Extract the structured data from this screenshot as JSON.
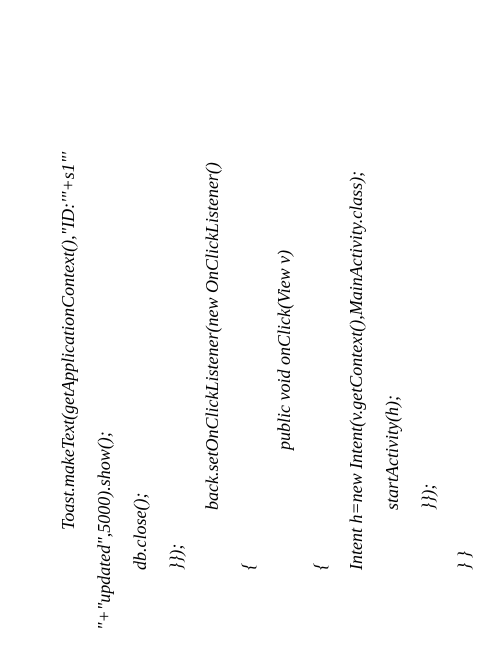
{
  "code": {
    "font_family": "Times New Roman",
    "font_style": "italic",
    "font_size_pt": 14,
    "text_color": "#000000",
    "background_color": "#ffffff",
    "rotation_deg": -90,
    "lines": [
      {
        "indent": "i2",
        "text": "Toast.makeText(getApplicationContext(),\"ID:'\"+s1\"'"
      },
      {
        "indent": "",
        "text": "\"+\"updated\",5000).show();"
      },
      {
        "indent": "i1",
        "text": "db.close();"
      },
      {
        "indent": "i1",
        "text": "}});"
      },
      {
        "indent": "i3",
        "text": "back.setOnClickListener(new OnClickListener()"
      },
      {
        "indent": "i1",
        "text": "{"
      },
      {
        "indent": "i4",
        "text": "public void onClick(View v)"
      },
      {
        "indent": "i1",
        "text": "{"
      },
      {
        "indent": "i1",
        "text": "Intent h=new Intent(v.getContext(),MainActivity.class);"
      },
      {
        "indent": "i3",
        "text": "startActivity(h);"
      },
      {
        "indent": "i3",
        "text": "}});"
      },
      {
        "indent": "i1",
        "text": "} }"
      }
    ]
  }
}
